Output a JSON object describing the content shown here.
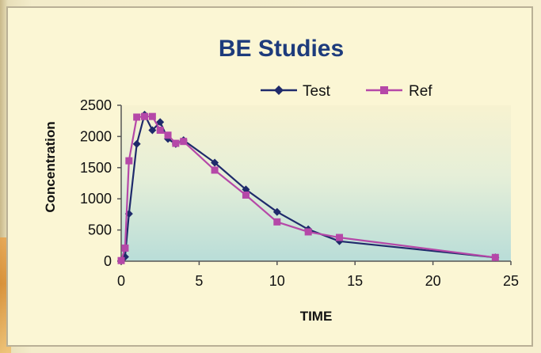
{
  "chart_data": {
    "type": "line",
    "title": "BE Studies",
    "xlabel": "TIME",
    "ylabel": "Concentration",
    "xlim": [
      0,
      25
    ],
    "ylim": [
      0,
      2500
    ],
    "x_ticks": [
      0,
      5,
      10,
      15,
      20,
      25
    ],
    "y_ticks": [
      0,
      500,
      1000,
      1500,
      2000,
      2500
    ],
    "grid": false,
    "legend_position": "top-right",
    "series": [
      {
        "name": "Test",
        "color": "#1f2a6b",
        "marker": "diamond",
        "x": [
          0,
          0.25,
          0.5,
          1,
          1.5,
          2,
          2.5,
          3,
          3.5,
          4,
          6,
          8,
          10,
          12,
          14,
          24
        ],
        "values": [
          10,
          70,
          760,
          1880,
          2350,
          2100,
          2230,
          1960,
          1880,
          1940,
          1580,
          1150,
          790,
          510,
          320,
          60
        ]
      },
      {
        "name": "Ref",
        "color": "#b548a8",
        "marker": "square",
        "x": [
          0,
          0.25,
          0.5,
          1,
          1.5,
          2,
          2.5,
          3,
          3.5,
          4,
          6,
          8,
          10,
          12,
          14,
          24
        ],
        "values": [
          10,
          210,
          1610,
          2310,
          2320,
          2320,
          2100,
          2020,
          1890,
          1920,
          1460,
          1060,
          630,
          470,
          380,
          60
        ]
      }
    ]
  }
}
